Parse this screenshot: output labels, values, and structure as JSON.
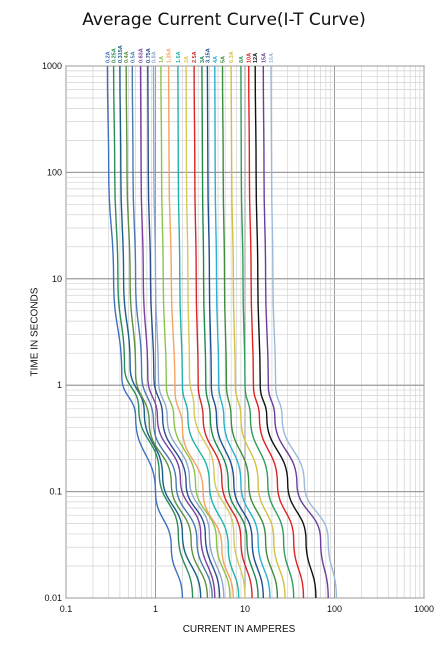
{
  "chart_data": {
    "type": "line",
    "title": "Average Current Curve(I-T Curve)",
    "xlabel": "CURRENT IN AMPERES",
    "ylabel": "TIME IN SECONDS",
    "xscale": "log",
    "yscale": "log",
    "xlim": [
      0.1,
      1000
    ],
    "ylim": [
      0.01,
      1000
    ],
    "grid": true,
    "legend_placement": "top",
    "x_ticks": [
      "0.1",
      "1",
      "10",
      "100",
      "1000"
    ],
    "y_ticks": [
      "0.01",
      "0.1",
      "1",
      "10",
      "100",
      "1000"
    ],
    "series": [
      {
        "name": "0.2A",
        "color": "#3f6fbf",
        "points": [
          [
            0.29,
            1000
          ],
          [
            0.3,
            100
          ],
          [
            0.34,
            10
          ],
          [
            0.42,
            1.2
          ],
          [
            0.6,
            0.5
          ],
          [
            1.0,
            0.1
          ],
          [
            1.5,
            0.03
          ],
          [
            2.0,
            0.01
          ]
        ]
      },
      {
        "name": "0.25A",
        "color": "#2e8b57",
        "points": [
          [
            0.34,
            1000
          ],
          [
            0.35,
            100
          ],
          [
            0.38,
            10
          ],
          [
            0.45,
            1.5
          ],
          [
            0.65,
            0.6
          ],
          [
            1.1,
            0.15
          ],
          [
            1.8,
            0.04
          ],
          [
            2.6,
            0.01
          ]
        ]
      },
      {
        "name": "0.315A",
        "color": "#1a5e8a",
        "points": [
          [
            0.4,
            1000
          ],
          [
            0.41,
            100
          ],
          [
            0.44,
            10
          ],
          [
            0.52,
            1.5
          ],
          [
            0.75,
            0.55
          ],
          [
            1.2,
            0.14
          ],
          [
            2.0,
            0.04
          ],
          [
            3.2,
            0.01
          ]
        ]
      },
      {
        "name": "0.4A",
        "color": "#5f8f3f",
        "points": [
          [
            0.47,
            1000
          ],
          [
            0.48,
            100
          ],
          [
            0.52,
            10
          ],
          [
            0.6,
            1.3
          ],
          [
            0.85,
            0.45
          ],
          [
            1.5,
            0.12
          ],
          [
            2.5,
            0.035
          ],
          [
            3.8,
            0.01
          ]
        ]
      },
      {
        "name": "0.5A",
        "color": "#4a7ab0",
        "points": [
          [
            0.55,
            1000
          ],
          [
            0.56,
            100
          ],
          [
            0.6,
            10
          ],
          [
            0.7,
            1.3
          ],
          [
            0.95,
            0.45
          ],
          [
            1.7,
            0.12
          ],
          [
            2.9,
            0.035
          ],
          [
            4.3,
            0.01
          ]
        ]
      },
      {
        "name": "0.63A",
        "color": "#7b3fa0",
        "points": [
          [
            0.68,
            1000
          ],
          [
            0.69,
            100
          ],
          [
            0.73,
            10
          ],
          [
            0.82,
            1.2
          ],
          [
            1.05,
            0.5
          ],
          [
            1.9,
            0.13
          ],
          [
            3.2,
            0.04
          ],
          [
            4.6,
            0.01
          ]
        ]
      },
      {
        "name": "0.75A",
        "color": "#2d4f8c",
        "points": [
          [
            0.82,
            1000
          ],
          [
            0.83,
            100
          ],
          [
            0.88,
            10
          ],
          [
            0.96,
            1.2
          ],
          [
            1.2,
            0.5
          ],
          [
            2.2,
            0.12
          ],
          [
            3.6,
            0.04
          ],
          [
            5.2,
            0.01
          ]
        ]
      },
      {
        "name": "0.8A",
        "color": "#8fa8cc",
        "points": [
          [
            0.95,
            1000
          ],
          [
            0.96,
            100
          ],
          [
            1.0,
            10
          ],
          [
            1.08,
            1.1
          ],
          [
            1.35,
            0.5
          ],
          [
            2.4,
            0.13
          ],
          [
            4.0,
            0.04
          ],
          [
            5.8,
            0.01
          ]
        ]
      },
      {
        "name": "1A",
        "color": "#8bc34a",
        "points": [
          [
            1.15,
            1000
          ],
          [
            1.17,
            100
          ],
          [
            1.22,
            10
          ],
          [
            1.32,
            1.0
          ],
          [
            1.6,
            0.5
          ],
          [
            2.8,
            0.12
          ],
          [
            4.8,
            0.035
          ],
          [
            6.8,
            0.01
          ]
        ]
      },
      {
        "name": "1.25A",
        "color": "#f4a460",
        "points": [
          [
            1.4,
            1000
          ],
          [
            1.42,
            100
          ],
          [
            1.5,
            10
          ],
          [
            1.65,
            0.9
          ],
          [
            2.0,
            0.4
          ],
          [
            3.4,
            0.1
          ],
          [
            5.5,
            0.03
          ],
          [
            7.4,
            0.01
          ]
        ]
      },
      {
        "name": "1.6A",
        "color": "#20b2aa",
        "points": [
          [
            1.78,
            1000
          ],
          [
            1.8,
            100
          ],
          [
            1.87,
            10
          ],
          [
            2.0,
            1.0
          ],
          [
            2.3,
            0.5
          ],
          [
            4.0,
            0.12
          ],
          [
            6.5,
            0.03
          ],
          [
            8.5,
            0.01
          ]
        ]
      },
      {
        "name": "2A",
        "color": "#d4c85a",
        "points": [
          [
            2.2,
            1000
          ],
          [
            2.22,
            100
          ],
          [
            2.3,
            10
          ],
          [
            2.4,
            1.2
          ],
          [
            2.7,
            0.6
          ],
          [
            4.5,
            0.15
          ],
          [
            7.5,
            0.04
          ],
          [
            10,
            0.01
          ]
        ]
      },
      {
        "name": "2.5A",
        "color": "#d62728",
        "points": [
          [
            2.7,
            1000
          ],
          [
            2.75,
            100
          ],
          [
            2.85,
            10
          ],
          [
            3.0,
            1.0
          ],
          [
            3.4,
            0.5
          ],
          [
            5.5,
            0.13
          ],
          [
            9,
            0.035
          ],
          [
            12,
            0.01
          ]
        ]
      },
      {
        "name": "3A",
        "color": "#1f8a4c",
        "points": [
          [
            3.3,
            1000
          ],
          [
            3.35,
            100
          ],
          [
            3.45,
            10
          ],
          [
            3.65,
            1.0
          ],
          [
            4.1,
            0.5
          ],
          [
            6.5,
            0.12
          ],
          [
            10.5,
            0.035
          ],
          [
            14,
            0.01
          ]
        ]
      },
      {
        "name": "3.15A",
        "color": "#1f4f8f",
        "points": [
          [
            3.8,
            1000
          ],
          [
            3.85,
            100
          ],
          [
            4.0,
            10
          ],
          [
            4.2,
            1.0
          ],
          [
            4.8,
            0.5
          ],
          [
            7.5,
            0.12
          ],
          [
            12,
            0.035
          ],
          [
            16,
            0.01
          ]
        ]
      },
      {
        "name": "4A",
        "color": "#2ab0d0",
        "points": [
          [
            4.6,
            1000
          ],
          [
            4.65,
            100
          ],
          [
            4.8,
            10
          ],
          [
            5.1,
            1.0
          ],
          [
            5.8,
            0.5
          ],
          [
            9,
            0.12
          ],
          [
            14,
            0.035
          ],
          [
            19,
            0.01
          ]
        ]
      },
      {
        "name": "5A",
        "color": "#3d8b3d",
        "points": [
          [
            5.6,
            1000
          ],
          [
            5.7,
            100
          ],
          [
            5.9,
            10
          ],
          [
            6.2,
            1.0
          ],
          [
            7.0,
            0.5
          ],
          [
            11,
            0.12
          ],
          [
            17,
            0.035
          ],
          [
            23,
            0.01
          ]
        ]
      },
      {
        "name": "6.3A",
        "color": "#d4c040",
        "points": [
          [
            7.0,
            1000
          ],
          [
            7.1,
            100
          ],
          [
            7.4,
            10
          ],
          [
            7.8,
            1.0
          ],
          [
            9.0,
            0.5
          ],
          [
            14,
            0.12
          ],
          [
            21,
            0.035
          ],
          [
            28,
            0.01
          ]
        ]
      },
      {
        "name": "8A",
        "color": "#2e9c5c",
        "points": [
          [
            9.0,
            1000
          ],
          [
            9.1,
            100
          ],
          [
            9.5,
            10
          ],
          [
            10,
            1.0
          ],
          [
            11.5,
            0.5
          ],
          [
            18,
            0.12
          ],
          [
            27,
            0.035
          ],
          [
            35,
            0.01
          ]
        ]
      },
      {
        "name": "10A",
        "color": "#e02020",
        "points": [
          [
            11,
            1000
          ],
          [
            11.2,
            100
          ],
          [
            11.7,
            10
          ],
          [
            12.4,
            1.0
          ],
          [
            14.5,
            0.5
          ],
          [
            23,
            0.12
          ],
          [
            35,
            0.035
          ],
          [
            45,
            0.01
          ]
        ]
      },
      {
        "name": "12A",
        "color": "#111111",
        "points": [
          [
            13,
            1000
          ],
          [
            13.3,
            100
          ],
          [
            13.9,
            10
          ],
          [
            14.8,
            1.0
          ],
          [
            17.5,
            0.5
          ],
          [
            30,
            0.12
          ],
          [
            48,
            0.035
          ],
          [
            62,
            0.01
          ]
        ]
      },
      {
        "name": "15A",
        "color": "#6a3d9a",
        "points": [
          [
            16,
            1000
          ],
          [
            16.3,
            100
          ],
          [
            17,
            10
          ],
          [
            18.2,
            1.0
          ],
          [
            21.5,
            0.5
          ],
          [
            38,
            0.12
          ],
          [
            70,
            0.035
          ],
          [
            85,
            0.01
          ]
        ]
      },
      {
        "name": "16A",
        "color": "#9cbad8",
        "points": [
          [
            19.5,
            1000
          ],
          [
            19.8,
            100
          ],
          [
            20.5,
            10
          ],
          [
            22,
            1.0
          ],
          [
            26,
            0.5
          ],
          [
            46,
            0.12
          ],
          [
            85,
            0.035
          ],
          [
            105,
            0.01
          ]
        ]
      }
    ]
  }
}
